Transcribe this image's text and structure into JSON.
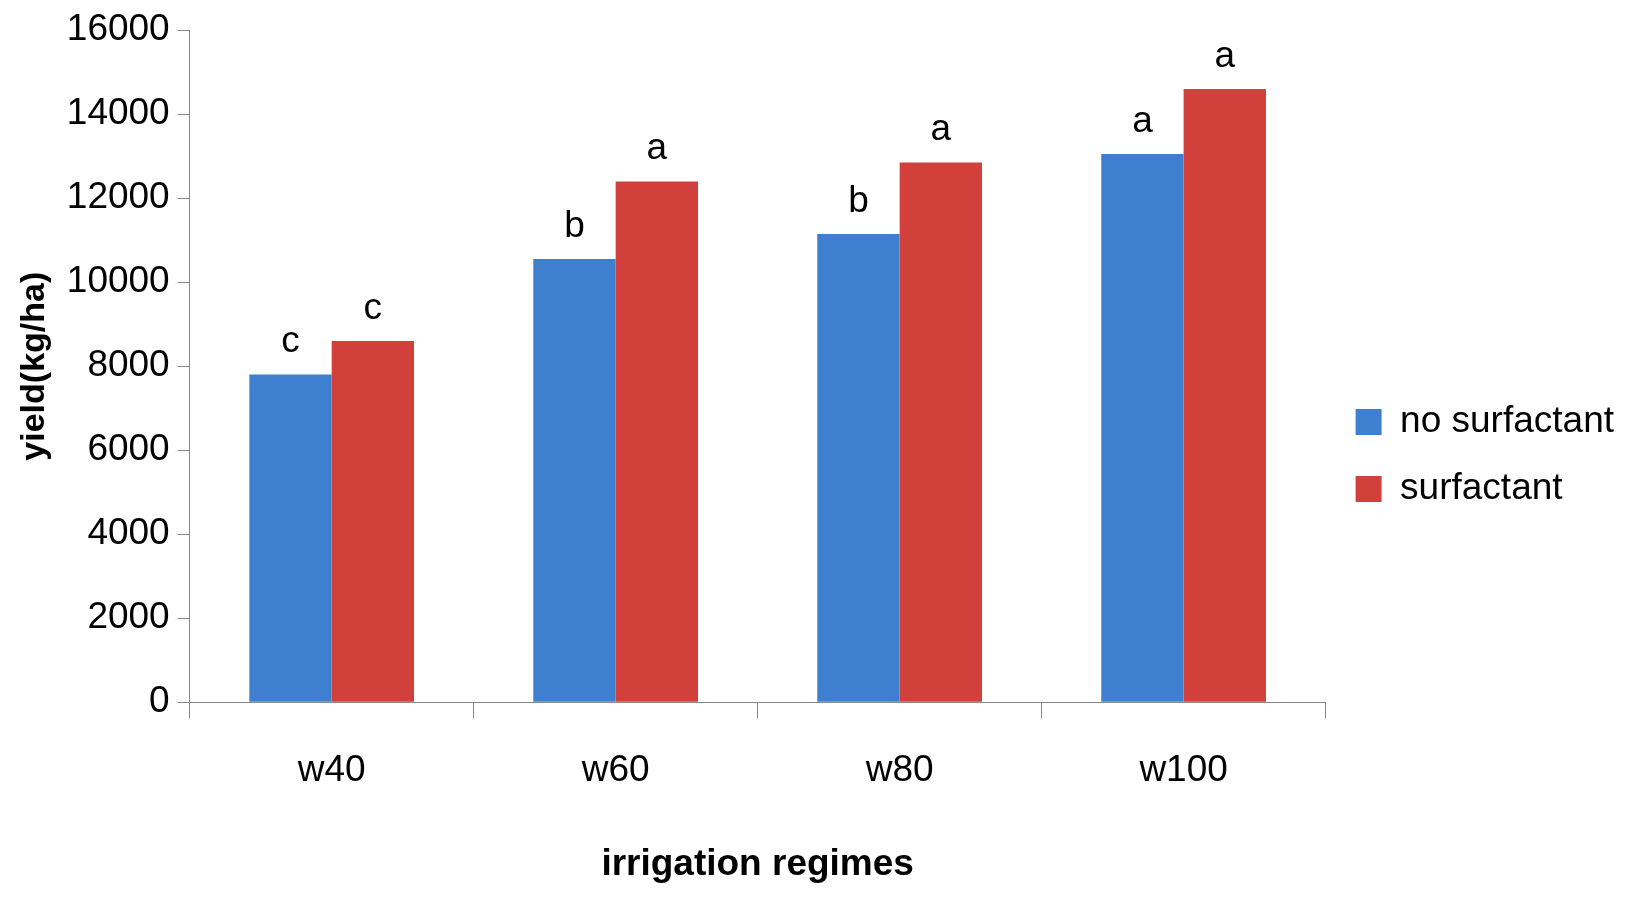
{
  "chart_data": {
    "type": "bar",
    "xlabel": "irrigation regimes",
    "ylabel": "yield(kg/ha)",
    "categories": [
      "w40",
      "w60",
      "w80",
      "w100"
    ],
    "series": [
      {
        "name": "no surfactant",
        "color": "#3f7fcf",
        "values": [
          7800,
          10550,
          11150,
          13050
        ]
      },
      {
        "name": "surfactant",
        "color": "#d2403c",
        "values": [
          8600,
          12400,
          12850,
          14600
        ]
      }
    ],
    "ylim": [
      0,
      16000
    ],
    "yticks": [
      0,
      2000,
      4000,
      6000,
      8000,
      10000,
      12000,
      14000,
      16000
    ],
    "grid": false,
    "legend": "right",
    "annotations": [
      {
        "text": "c",
        "x": "w40",
        "y": 7800
      },
      {
        "text": "c",
        "x": "w40",
        "y": 8600
      },
      {
        "text": "b",
        "x": "w60",
        "y": 10550
      },
      {
        "text": "a",
        "x": "w60",
        "y": 12400
      },
      {
        "text": "b",
        "x": "w80",
        "y": 11150
      },
      {
        "text": "a",
        "x": "w80",
        "y": 12850
      },
      {
        "text": "a",
        "x": "w100",
        "y": 13050
      },
      {
        "text": "a",
        "x": "w100",
        "y": 14600
      }
    ]
  }
}
